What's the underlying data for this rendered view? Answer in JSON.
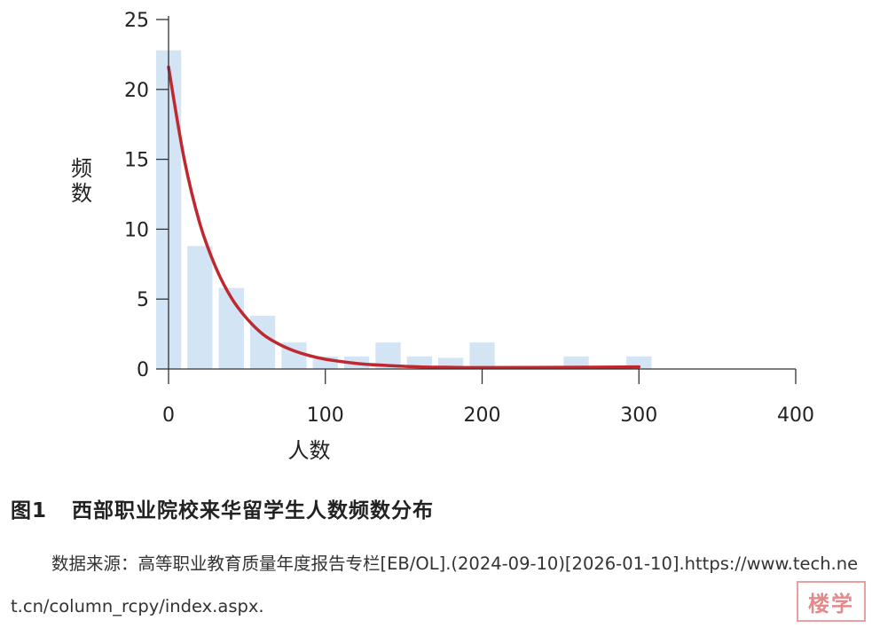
{
  "chart_data": {
    "type": "bar",
    "bin_width": 20,
    "bins": [
      {
        "start": 0,
        "value": 22.8
      },
      {
        "start": 20,
        "value": 8.8
      },
      {
        "start": 40,
        "value": 5.8
      },
      {
        "start": 60,
        "value": 3.8
      },
      {
        "start": 80,
        "value": 1.9
      },
      {
        "start": 100,
        "value": 0.9
      },
      {
        "start": 120,
        "value": 0.9
      },
      {
        "start": 140,
        "value": 1.9
      },
      {
        "start": 160,
        "value": 0.9
      },
      {
        "start": 180,
        "value": 0.8
      },
      {
        "start": 200,
        "value": 1.9
      },
      {
        "start": 220,
        "value": 0
      },
      {
        "start": 240,
        "value": 0
      },
      {
        "start": 260,
        "value": 0.9
      },
      {
        "start": 280,
        "value": 0
      },
      {
        "start": 300,
        "value": 0.9
      }
    ],
    "fit_curve": {
      "name": "exponential fit",
      "x": [
        0,
        10,
        20,
        30,
        40,
        50,
        60,
        70,
        80,
        90,
        100,
        120,
        140,
        160,
        180,
        200,
        250,
        300
      ],
      "y": [
        21.6,
        15.0,
        10.4,
        7.3,
        5.1,
        3.6,
        2.5,
        1.8,
        1.3,
        0.95,
        0.7,
        0.4,
        0.25,
        0.15,
        0.12,
        0.1,
        0.12,
        0.15
      ]
    },
    "xlabel": "人数",
    "ylabel": "频数",
    "xlim": [
      0,
      400
    ],
    "ylim": [
      0,
      25
    ],
    "x_ticks": [
      0,
      100,
      200,
      300,
      400
    ],
    "y_ticks": [
      0,
      5,
      10,
      15,
      20,
      25
    ],
    "grid": false,
    "colors": {
      "bar": "#d3e4f5",
      "curve": "#c0282f",
      "axis": "#333333"
    }
  },
  "caption": {
    "label": "图1",
    "title": "西部职业院校来华留学生人数频数分布"
  },
  "source_note": "数据来源：高等职业教育质量年度报告专栏[EB/OL].(2024-09-10)[2026-01-10].https://www.tech.net.cn/column_rcpy/index.aspx.",
  "seal_text": "楼学"
}
